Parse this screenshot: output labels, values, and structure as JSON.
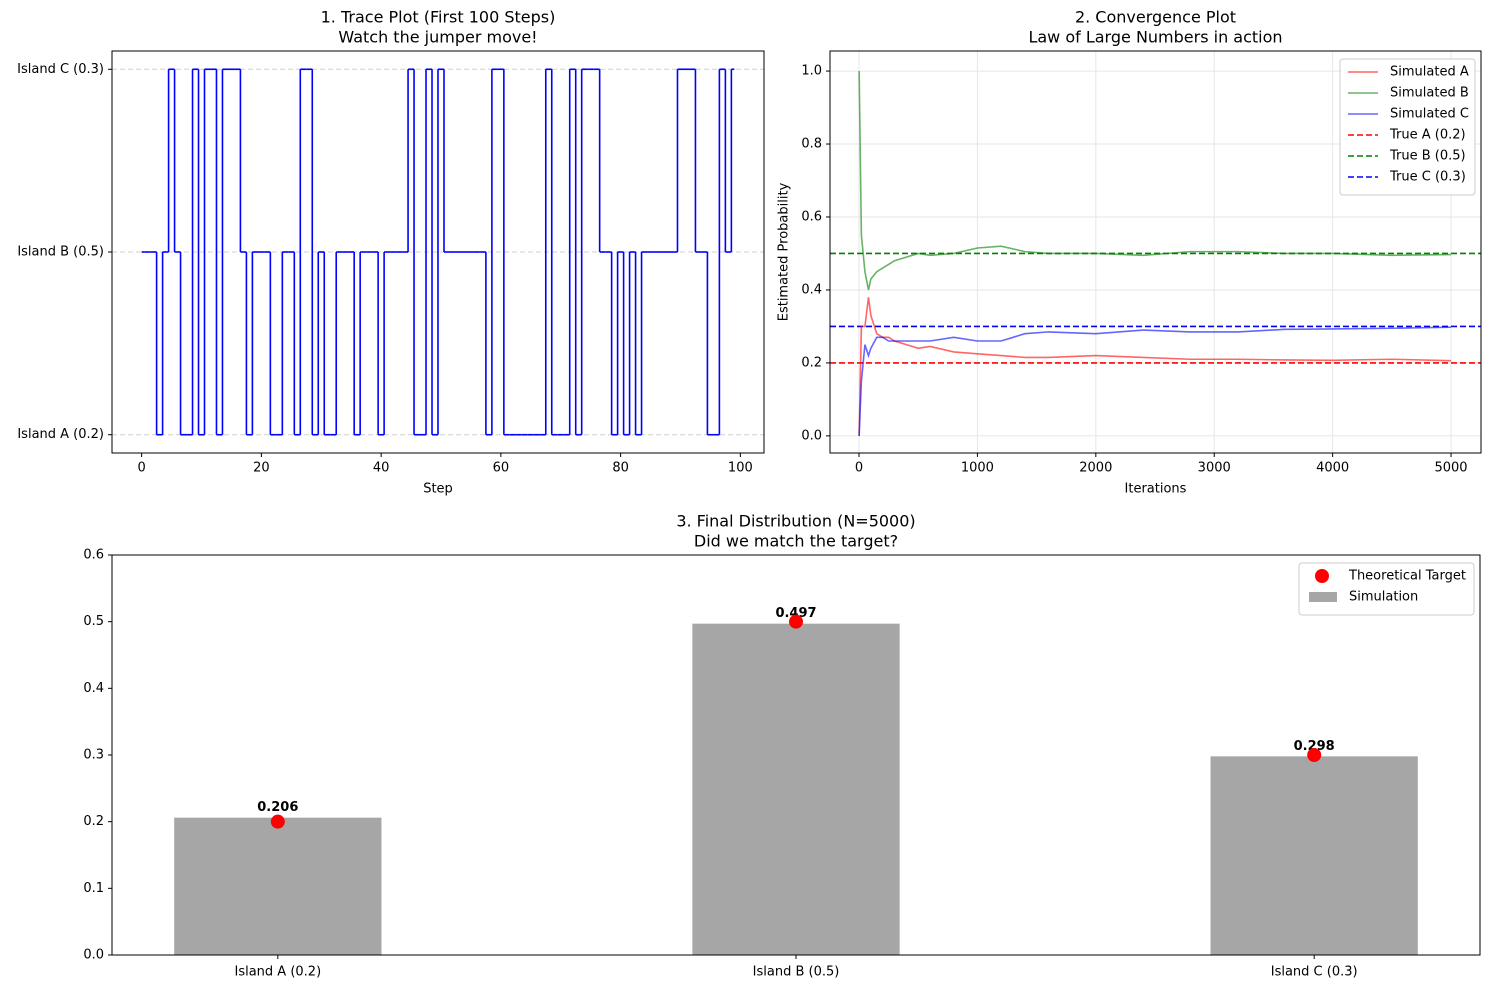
{
  "chart_data": [
    {
      "type": "line",
      "step": "mid",
      "title": "1. Trace Plot (First 100 Steps)",
      "subtitle": "Watch the jumper move!",
      "xlabel": "Step",
      "x": [
        0,
        1,
        2,
        3,
        4,
        5,
        6,
        7,
        8,
        9,
        10,
        11,
        12,
        13,
        14,
        15,
        16,
        17,
        18,
        19,
        20,
        21,
        22,
        23,
        24,
        25,
        26,
        27,
        28,
        29,
        30,
        31,
        32,
        33,
        34,
        35,
        36,
        37,
        38,
        39,
        40,
        41,
        42,
        43,
        44,
        45,
        46,
        47,
        48,
        49,
        50,
        51,
        52,
        53,
        54,
        55,
        56,
        57,
        58,
        59,
        60,
        61,
        62,
        63,
        64,
        65,
        66,
        67,
        68,
        69,
        70,
        71,
        72,
        73,
        74,
        75,
        76,
        77,
        78,
        79,
        80,
        81,
        82,
        83,
        84,
        85,
        86,
        87,
        88,
        89,
        90,
        91,
        92,
        93,
        94,
        95,
        96,
        97,
        98,
        99
      ],
      "series": [
        {
          "color": "#0000ff",
          "values": [
            1,
            1,
            1,
            0,
            1,
            2,
            1,
            0,
            0,
            2,
            0,
            2,
            2,
            0,
            2,
            2,
            2,
            1,
            0,
            1,
            1,
            1,
            0,
            0,
            1,
            1,
            0,
            2,
            2,
            0,
            1,
            0,
            0,
            1,
            1,
            1,
            0,
            1,
            1,
            1,
            0,
            1,
            1,
            1,
            1,
            2,
            0,
            0,
            2,
            0,
            2,
            1,
            1,
            1,
            1,
            1,
            1,
            1,
            0,
            2,
            2,
            0,
            0,
            0,
            0,
            0,
            0,
            0,
            2,
            0,
            0,
            0,
            2,
            0,
            2,
            2,
            2,
            1,
            1,
            0,
            1,
            0,
            1,
            0,
            1,
            1,
            1,
            1,
            1,
            1,
            2,
            2,
            2,
            1,
            1,
            0,
            0,
            2,
            1,
            2
          ]
        }
      ],
      "xlim": [
        -4.95,
        103.95
      ],
      "xticks": [
        0,
        20,
        40,
        60,
        80,
        100
      ],
      "ylim": [
        -0.1,
        2.1
      ],
      "yticks": [
        {
          "value": 0,
          "label": "Island A (0.2)"
        },
        {
          "value": 1,
          "label": "Island B (0.5)"
        },
        {
          "value": 2,
          "label": "Island C (0.3)"
        }
      ],
      "grid": "y"
    },
    {
      "type": "line",
      "title": "2. Convergence Plot",
      "subtitle": "Law of Large Numbers in action",
      "xlabel": "Iterations",
      "ylabel": "Estimated Probability",
      "x": [
        1,
        20,
        50,
        80,
        100,
        150,
        200,
        250,
        300,
        400,
        500,
        600,
        800,
        1000,
        1200,
        1400,
        1600,
        2000,
        2400,
        2800,
        3200,
        3600,
        4000,
        4500,
        5000
      ],
      "series": [
        {
          "name": "Simulated A",
          "color": "#ff0000",
          "opacity": 0.6,
          "values": [
            0,
            0.3,
            0.3,
            0.38,
            0.33,
            0.28,
            0.27,
            0.27,
            0.26,
            0.25,
            0.24,
            0.245,
            0.23,
            0.225,
            0.22,
            0.215,
            0.215,
            0.22,
            0.215,
            0.21,
            0.21,
            0.208,
            0.207,
            0.21,
            0.206
          ]
        },
        {
          "name": "Simulated B",
          "color": "#008000",
          "opacity": 0.6,
          "values": [
            1.0,
            0.55,
            0.45,
            0.4,
            0.43,
            0.45,
            0.46,
            0.47,
            0.48,
            0.49,
            0.5,
            0.495,
            0.5,
            0.515,
            0.52,
            0.505,
            0.5,
            0.5,
            0.495,
            0.505,
            0.505,
            0.5,
            0.5,
            0.495,
            0.497
          ]
        },
        {
          "name": "Simulated C",
          "color": "#0000ff",
          "opacity": 0.6,
          "values": [
            0,
            0.15,
            0.25,
            0.22,
            0.24,
            0.27,
            0.27,
            0.26,
            0.26,
            0.26,
            0.26,
            0.26,
            0.27,
            0.26,
            0.26,
            0.28,
            0.285,
            0.28,
            0.29,
            0.285,
            0.285,
            0.292,
            0.293,
            0.295,
            0.298
          ]
        }
      ],
      "hlines": [
        {
          "name": "True A (0.2)",
          "color": "#ff0000",
          "value": 0.2
        },
        {
          "name": "True B (0.5)",
          "color": "#008000",
          "value": 0.5
        },
        {
          "name": "True C (0.3)",
          "color": "#0000ff",
          "value": 0.3
        }
      ],
      "xlim": [
        -245,
        5253
      ],
      "xticks": [
        0,
        1000,
        2000,
        3000,
        4000,
        5000
      ],
      "ylim": [
        -0.047,
        1.055
      ],
      "yticks": [
        {
          "value": 0,
          "label": "0.0"
        },
        0.2,
        0.4,
        0.6,
        0.8,
        {
          "value": 1,
          "label": "1.0"
        }
      ],
      "grid": true,
      "legend": "upper-right"
    },
    {
      "type": "bar",
      "title": "3. Final Distribution (N=5000)",
      "subtitle": "Did we match the target?",
      "categories": [
        "Island A (0.2)",
        "Island B (0.5)",
        "Island C (0.3)"
      ],
      "series": [
        {
          "name": "Theoretical Target",
          "type": "scatter",
          "color": "#ff0000",
          "values": [
            0.2,
            0.5,
            0.3
          ]
        },
        {
          "name": "Simulation",
          "type": "bar",
          "color": "#a6a6a6",
          "values": [
            0.206,
            0.497,
            0.298
          ]
        }
      ],
      "ylim": [
        0,
        0.6
      ],
      "yticks": [
        {
          "value": 0,
          "label": "0.0"
        },
        0.1,
        0.2,
        0.3,
        0.4,
        0.5,
        0.6
      ],
      "grid": false,
      "legend": "upper-right"
    }
  ]
}
